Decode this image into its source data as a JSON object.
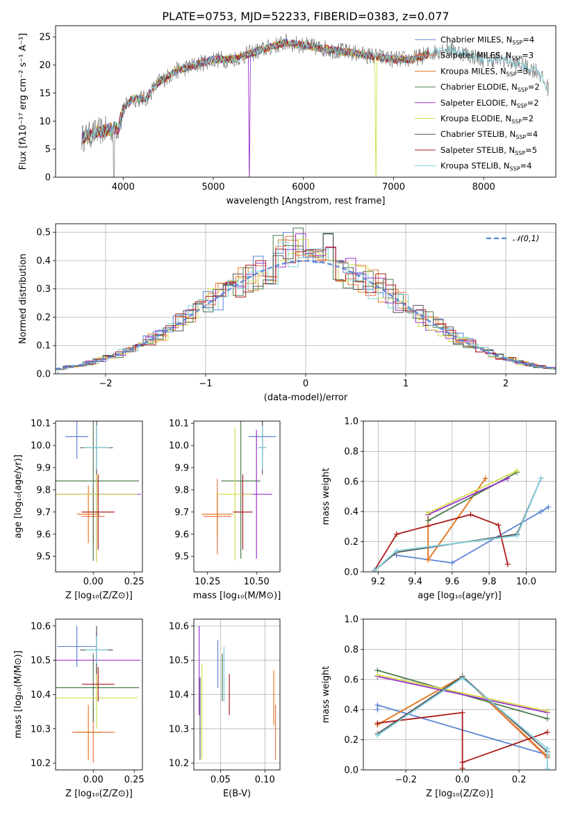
{
  "colors": [
    "#5b84d6",
    "#e8774f",
    "#e07a23",
    "#4a7a4a",
    "#9932cc",
    "#d4dc4a",
    "#555555",
    "#aa1a1a",
    "#7fd0de"
  ],
  "chart_data": [
    {
      "id": "spectrum",
      "type": "line",
      "title": "PLATE=0753, MJD=52233, FIBERID=0383, z=0.077",
      "xlabel": "wavelength [Angstrom, rest frame]",
      "ylabel": "Flux [fλ10⁻¹⁷ erg cm⁻² s⁻¹ A⁻¹]",
      "xlim": [
        3250,
        8800
      ],
      "ylim": [
        0,
        27
      ],
      "xticks": [
        "4000",
        "5000",
        "6000",
        "7000",
        "8000"
      ],
      "yticks": [
        "0",
        "5",
        "10",
        "15",
        "20",
        "25"
      ],
      "grid": false,
      "legend_position": "top-right",
      "legend": [
        "Chabrier MILES, N_SSP=4",
        "Salpeter MILES, N_SSP=3",
        "Kroupa MILES, N_SSP=3",
        "Chabrier ELODIE, N_SSP=2",
        "Salpeter ELODIE, N_SSP=2",
        "Kroupa ELODIE, N_SSP=2",
        "Chabrier STELIB, N_SSP=4",
        "Salpeter STELIB, N_SSP=5",
        "Kroupa STELIB, N_SSP=4"
      ],
      "continuum_points": [
        [
          3550,
          7
        ],
        [
          3700,
          8
        ],
        [
          3850,
          8.5
        ],
        [
          3950,
          9
        ],
        [
          4000,
          12
        ],
        [
          4100,
          14
        ],
        [
          4250,
          14
        ],
        [
          4400,
          17
        ],
        [
          4600,
          19
        ],
        [
          4800,
          20
        ],
        [
          5000,
          21
        ],
        [
          5200,
          21
        ],
        [
          5400,
          22
        ],
        [
          5600,
          23
        ],
        [
          5800,
          24
        ],
        [
          6000,
          23.5
        ],
        [
          6200,
          23
        ],
        [
          6400,
          22.5
        ],
        [
          6600,
          22
        ],
        [
          6800,
          21.5
        ],
        [
          7000,
          21
        ],
        [
          7200,
          21
        ],
        [
          7400,
          22
        ],
        [
          7600,
          23
        ],
        [
          7800,
          22
        ],
        [
          8000,
          21
        ],
        [
          8200,
          21
        ],
        [
          8400,
          20
        ],
        [
          8600,
          19
        ],
        [
          8700,
          16
        ]
      ],
      "model_range": [
        3540,
        7400
      ]
    },
    {
      "id": "residuals",
      "type": "bar",
      "xlabel": "(data-model)/error",
      "ylabel": "Normed distribution",
      "xlim": [
        -2.5,
        2.5
      ],
      "ylim": [
        0,
        0.53
      ],
      "xticks": [
        "−2",
        "−1",
        "0",
        "1",
        "2"
      ],
      "yticks": [
        "0.0",
        "0.1",
        "0.2",
        "0.3",
        "0.4",
        "0.5"
      ],
      "grid": true,
      "legend_position": "top-right",
      "legend": [
        "𝒩(0,1)"
      ],
      "normal_mean": 0,
      "normal_sigma": 1
    },
    {
      "id": "age-Z",
      "type": "scatter",
      "xlabel": "Z [log₁₀(Z/Z⊙)]",
      "ylabel": "age  [log₁₀(age/yr)]",
      "xlim": [
        -0.23,
        0.3
      ],
      "ylim": [
        9.43,
        10.11
      ],
      "xticks": [
        "0.00",
        "0.25"
      ],
      "yticks": [
        "9.5",
        "9.6",
        "9.7",
        "9.8",
        "9.9",
        "10.0",
        "10.1"
      ],
      "grid": false,
      "points": [
        {
          "x": -0.1,
          "y": 10.04,
          "xerr": 0.07,
          "yerr": 0.1
        },
        {
          "x": 0.0,
          "y": 9.68,
          "xerr": 0.07,
          "yerr": 0.13
        },
        {
          "x": -0.03,
          "y": 9.69,
          "xerr": 0.07,
          "yerr": 0.13
        },
        {
          "x": 0.0,
          "y": 9.84,
          "xerr": 0.28,
          "yerr": 0.36
        },
        {
          "x": 0.02,
          "y": 9.78,
          "xerr": 0.27,
          "yerr": 0.3
        },
        {
          "x": 0.02,
          "y": 9.78,
          "xerr": 0.25,
          "yerr": 0.31
        },
        {
          "x": 0.02,
          "y": 9.99,
          "xerr": 0.1,
          "yerr": 0.12
        },
        {
          "x": 0.03,
          "y": 9.7,
          "xerr": 0.1,
          "yerr": 0.17
        },
        {
          "x": 0.02,
          "y": 9.99,
          "xerr": 0.08,
          "yerr": 0.1
        }
      ]
    },
    {
      "id": "age-mass",
      "type": "scatter",
      "xlabel": "mass [log₁₀(M/M⊙)]",
      "ylabel": "",
      "xlim": [
        10.18,
        10.62
      ],
      "ylim": [
        9.43,
        10.11
      ],
      "xticks": [
        "10.25",
        "10.50"
      ],
      "yticks": [
        "9.5",
        "9.6",
        "9.7",
        "9.8",
        "9.9",
        "10.0",
        "10.1"
      ],
      "grid": false,
      "points": [
        {
          "x": 10.53,
          "y": 10.04,
          "xerr": 0.07,
          "yerr": 0.1
        },
        {
          "x": 10.3,
          "y": 9.68,
          "xerr": 0.07,
          "yerr": 0.17
        },
        {
          "x": 10.3,
          "y": 9.69,
          "xerr": 0.08,
          "yerr": 0.1
        },
        {
          "x": 10.42,
          "y": 9.84,
          "xerr": 0.1,
          "yerr": 0.35
        },
        {
          "x": 10.5,
          "y": 9.78,
          "xerr": 0.08,
          "yerr": 0.29
        },
        {
          "x": 10.39,
          "y": 9.78,
          "xerr": 0.09,
          "yerr": 0.3
        },
        {
          "x": 10.53,
          "y": 9.99,
          "xerr": 0.02,
          "yerr": 0.12
        },
        {
          "x": 10.43,
          "y": 9.7,
          "xerr": 0.05,
          "yerr": 0.17
        },
        {
          "x": 10.53,
          "y": 9.99,
          "xerr": 0.02,
          "yerr": 0.1
        }
      ]
    },
    {
      "id": "weight-age",
      "type": "line",
      "xlabel": "age  [log₁₀(age/yr)]",
      "ylabel": "mass weight",
      "xlim": [
        9.12,
        10.16
      ],
      "ylim": [
        0,
        1
      ],
      "xticks": [
        "9.2",
        "9.4",
        "9.6",
        "9.8",
        "10.0"
      ],
      "yticks": [
        "0.0",
        "0.2",
        "0.4",
        "0.6",
        "0.8",
        "1.0"
      ],
      "grid": true,
      "series": [
        {
          "points": [
            [
              9.3,
              0.11
            ],
            [
              9.6,
              0.06
            ],
            [
              10.08,
              0.4
            ],
            [
              10.12,
              0.43
            ]
          ]
        },
        {
          "points": [
            [
              9.47,
              0.3
            ],
            [
              9.47,
              0.08
            ],
            [
              9.78,
              0.62
            ]
          ]
        },
        {
          "points": [
            [
              9.47,
              0.38
            ],
            [
              9.47,
              0.08
            ],
            [
              9.78,
              0.62
            ]
          ]
        },
        {
          "points": [
            [
              9.47,
              0.34
            ],
            [
              9.95,
              0.66
            ]
          ]
        },
        {
          "points": [
            [
              9.47,
              0.38
            ],
            [
              9.9,
              0.62
            ]
          ]
        },
        {
          "points": [
            [
              9.47,
              0.39
            ],
            [
              9.95,
              0.67
            ]
          ]
        },
        {
          "points": [
            [
              9.18,
              0.01
            ],
            [
              9.3,
              0.13
            ],
            [
              9.95,
              0.25
            ],
            [
              10.08,
              0.62
            ]
          ]
        },
        {
          "points": [
            [
              9.18,
              0.01
            ],
            [
              9.3,
              0.25
            ],
            [
              9.7,
              0.38
            ],
            [
              9.85,
              0.31
            ],
            [
              9.9,
              0.05
            ]
          ]
        },
        {
          "points": [
            [
              9.18,
              0.01
            ],
            [
              9.3,
              0.14
            ],
            [
              9.95,
              0.24
            ],
            [
              10.08,
              0.62
            ]
          ]
        }
      ]
    },
    {
      "id": "mass-Z",
      "type": "scatter",
      "xlabel": "Z [log₁₀(Z/Z⊙)]",
      "ylabel": "mass [log₁₀(M/M⊙)]",
      "xlim": [
        -0.23,
        0.3
      ],
      "ylim": [
        10.18,
        10.62
      ],
      "xticks": [
        "0.00",
        "0.25"
      ],
      "yticks": [
        "10.2",
        "10.3",
        "10.4",
        "10.5",
        "10.6"
      ],
      "grid": false,
      "points": [
        {
          "x": -0.1,
          "y": 10.54,
          "xerr": 0.12,
          "yerr": 0.06
        },
        {
          "x": 0.0,
          "y": 10.29,
          "xerr": 0.13,
          "yerr": 0.09
        },
        {
          "x": -0.03,
          "y": 10.29,
          "xerr": 0.08,
          "yerr": 0.08
        },
        {
          "x": 0.0,
          "y": 10.42,
          "xerr": 0.28,
          "yerr": 0.1
        },
        {
          "x": 0.02,
          "y": 10.5,
          "xerr": 0.27,
          "yerr": 0.08
        },
        {
          "x": 0.02,
          "y": 10.39,
          "xerr": 0.25,
          "yerr": 0.09
        },
        {
          "x": 0.02,
          "y": 10.53,
          "xerr": 0.1,
          "yerr": 0.07
        },
        {
          "x": 0.03,
          "y": 10.43,
          "xerr": 0.1,
          "yerr": 0.05
        },
        {
          "x": 0.02,
          "y": 10.53,
          "xerr": 0.07,
          "yerr": 0.04
        }
      ]
    },
    {
      "id": "mass-EBV",
      "type": "scatter",
      "xlabel": "E(B-V)",
      "ylabel": "",
      "xlim": [
        0.02,
        0.117
      ],
      "ylim": [
        10.18,
        10.62
      ],
      "xticks": [
        "0.05",
        "0.10"
      ],
      "yticks": [
        "10.2",
        "10.3",
        "10.4",
        "10.5",
        "10.6"
      ],
      "grid": true,
      "points": [
        {
          "x": 0.047,
          "y": 10.49,
          "xerr": 0,
          "yerr": 0.07
        },
        {
          "x": 0.112,
          "y": 10.29,
          "xerr": 0,
          "yerr": 0.08
        },
        {
          "x": 0.11,
          "y": 10.39,
          "xerr": 0,
          "yerr": 0.08
        },
        {
          "x": 0.052,
          "y": 10.45,
          "xerr": 0,
          "yerr": 0.07
        },
        {
          "x": 0.026,
          "y": 10.47,
          "xerr": 0,
          "yerr": 0.13
        },
        {
          "x": 0.029,
          "y": 10.35,
          "xerr": 0,
          "yerr": 0.14
        },
        {
          "x": 0.027,
          "y": 10.33,
          "xerr": 0,
          "yerr": 0.12
        },
        {
          "x": 0.06,
          "y": 10.4,
          "xerr": 0,
          "yerr": 0.06
        },
        {
          "x": 0.054,
          "y": 10.46,
          "xerr": 0,
          "yerr": 0.08
        }
      ]
    },
    {
      "id": "weight-Z",
      "type": "line",
      "xlabel": "Z [log₁₀(Z/Z⊙)]",
      "ylabel": "mass weight",
      "xlim": [
        -0.35,
        0.33
      ],
      "ylim": [
        0,
        1
      ],
      "xticks": [
        "−0.2",
        "0.0",
        "0.2"
      ],
      "yticks": [
        "0.0",
        "0.2",
        "0.4",
        "0.6",
        "0.8",
        "1.0"
      ],
      "grid": true,
      "series": [
        {
          "points": [
            [
              -0.3,
              0.4
            ],
            [
              -0.3,
              0.43
            ],
            [
              0.3,
              0.1
            ]
          ]
        },
        {
          "points": [
            [
              -0.3,
              0.3
            ],
            [
              0.0,
              0.62
            ],
            [
              0.3,
              0.08
            ]
          ]
        },
        {
          "points": [
            [
              -0.3,
              0.3
            ],
            [
              0.0,
              0.62
            ],
            [
              0.3,
              0.09
            ]
          ]
        },
        {
          "points": [
            [
              -0.3,
              0.66
            ],
            [
              0.3,
              0.34
            ]
          ]
        },
        {
          "points": [
            [
              -0.3,
              0.62
            ],
            [
              0.3,
              0.38
            ]
          ]
        },
        {
          "points": [
            [
              -0.3,
              0.63
            ],
            [
              0.3,
              0.39
            ]
          ]
        },
        {
          "points": [
            [
              -0.3,
              0.24
            ],
            [
              0.0,
              0.62
            ],
            [
              0.3,
              0.12
            ]
          ]
        },
        {
          "points": [
            [
              -0.3,
              0.31
            ],
            [
              0.0,
              0.38
            ],
            [
              0.0,
              0.01
            ],
            [
              0.0,
              0.05
            ],
            [
              0.3,
              0.25
            ]
          ]
        },
        {
          "points": [
            [
              -0.3,
              0.23
            ],
            [
              0.0,
              0.61
            ],
            [
              0.3,
              0.14
            ],
            [
              0.3,
              0.01
            ]
          ]
        }
      ]
    }
  ]
}
